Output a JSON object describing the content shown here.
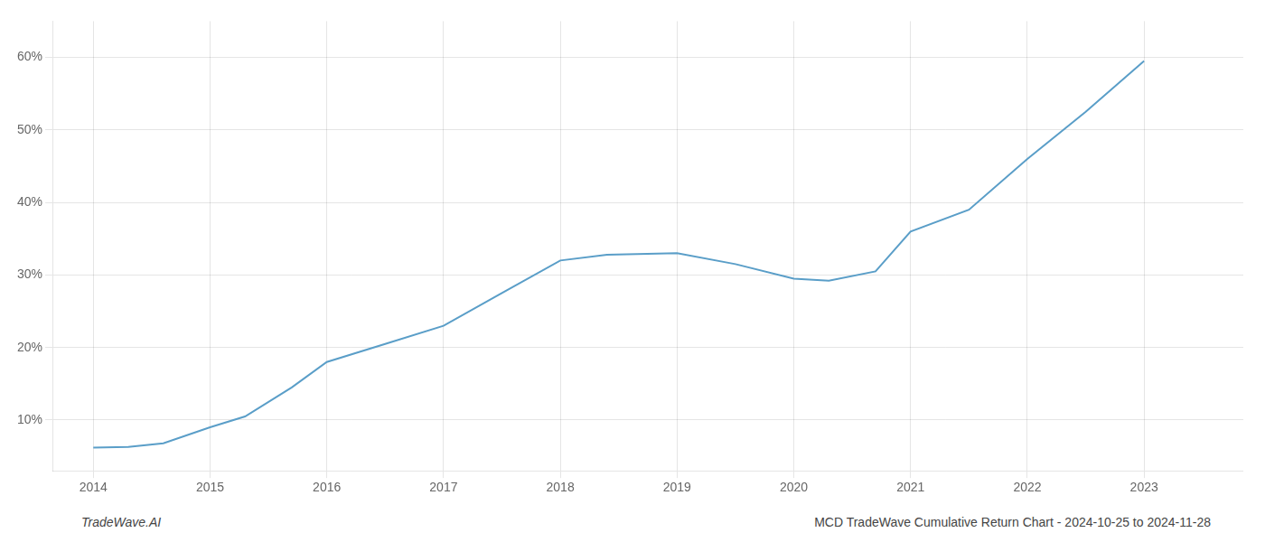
{
  "chart_data": {
    "type": "line",
    "x": [
      2014.0,
      2014.3,
      2014.6,
      2015.0,
      2015.3,
      2015.7,
      2016.0,
      2016.5,
      2017.0,
      2017.5,
      2018.0,
      2018.4,
      2019.0,
      2019.5,
      2020.0,
      2020.3,
      2020.7,
      2021.0,
      2021.5,
      2022.0,
      2022.5,
      2023.0
    ],
    "values": [
      6.2,
      6.3,
      6.8,
      9.0,
      10.5,
      14.5,
      18.0,
      20.5,
      23.0,
      27.5,
      32.0,
      32.8,
      33.0,
      31.5,
      29.5,
      29.2,
      30.5,
      36.0,
      39.0,
      46.0,
      52.5,
      59.5
    ],
    "color": "#5a9ec8",
    "xlim": [
      2013.65,
      2023.85
    ],
    "xticks": [
      2014,
      2015,
      2016,
      2017,
      2018,
      2019,
      2020,
      2021,
      2022,
      2023
    ],
    "ylim": [
      3,
      65
    ],
    "yticks": [
      {
        "value": 10,
        "label": "10%"
      },
      {
        "value": 20,
        "label": "20%"
      },
      {
        "value": 30,
        "label": "30%"
      },
      {
        "value": 40,
        "label": "40%"
      },
      {
        "value": 50,
        "label": "50%"
      },
      {
        "value": 60,
        "label": "60%"
      }
    ],
    "grid": true,
    "annotations": [
      "TradeWave.AI",
      "MCD TradeWave Cumulative Return Chart - 2024-10-25 to 2024-11-28"
    ]
  }
}
